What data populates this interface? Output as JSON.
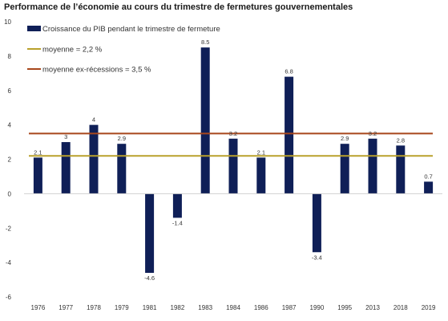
{
  "chart_data": {
    "type": "bar",
    "title": "Performance de l’économie au cours du trimestre de fermetures gouvernementales",
    "xlabel": "",
    "ylabel": "",
    "categories": [
      "1976",
      "1977",
      "1978",
      "1979",
      "1981",
      "1982",
      "1983",
      "1984",
      "1986",
      "1987",
      "1990",
      "1995",
      "2013",
      "2018",
      "2019"
    ],
    "series": [
      {
        "name": "Croissance du PIB pendant le trimestre de fermeture",
        "values": [
          2.1,
          3,
          4,
          2.9,
          -4.6,
          -1.4,
          8.5,
          3.2,
          2.1,
          6.8,
          -3.4,
          2.9,
          3.2,
          2.8,
          0.7
        ],
        "labels": [
          "2.1",
          "3",
          "4",
          "2.9",
          "-4.6",
          "-1.4",
          "8.5",
          "3.2",
          "2.1",
          "6.8",
          "-3.4",
          "2.9",
          "3.2",
          "2.8",
          "0.7"
        ],
        "color": "#0f1f57"
      }
    ],
    "reference_lines": [
      {
        "name": "moyenne = 2,2 %",
        "value": 2.2,
        "color": "#b9a12c"
      },
      {
        "name": "moyenne ex-récessions = 3,5 %",
        "value": 3.5,
        "color": "#a8471c"
      }
    ],
    "ylim": [
      -6,
      10
    ],
    "yticks": [
      -6,
      -4,
      -2,
      0,
      2,
      4,
      6,
      8,
      10
    ],
    "grid": false,
    "legend_position": "top-left"
  }
}
